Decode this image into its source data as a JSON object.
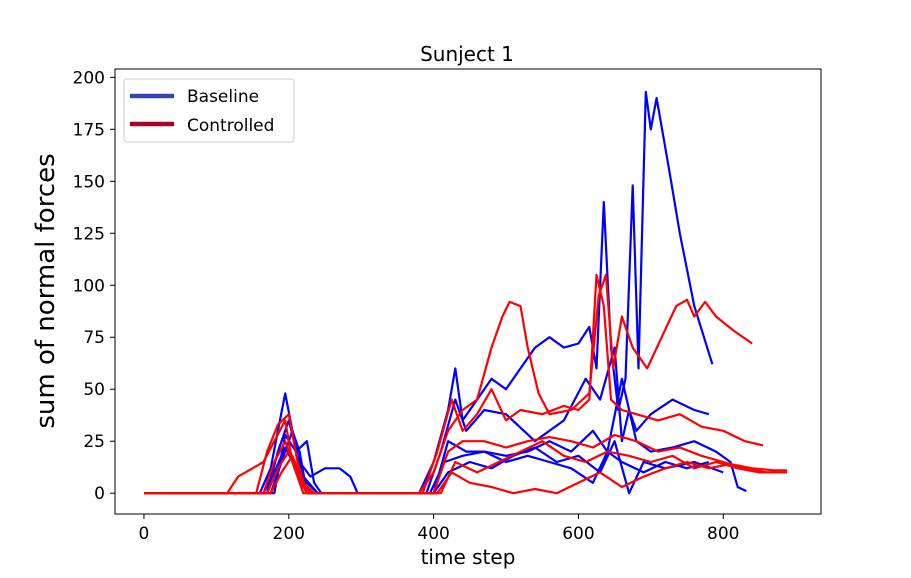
{
  "chart_data": {
    "type": "line",
    "title": "Sunject 1",
    "xlabel": "time step",
    "ylabel": "sum of normal forces",
    "xlim": [
      -40,
      935
    ],
    "ylim": [
      -10,
      204
    ],
    "xticks": [
      0,
      200,
      400,
      600,
      800
    ],
    "yticks": [
      0,
      25,
      50,
      75,
      100,
      125,
      150,
      175,
      200
    ],
    "grid": false,
    "legend": {
      "position": "top-left",
      "entries": [
        {
          "label": "Baseline",
          "color": "#3344bb"
        },
        {
          "label": "Controlled",
          "color": "#aa0022"
        }
      ]
    },
    "series_colors": {
      "Baseline": "#0000ff",
      "Controlled": "#ff0000"
    },
    "series": [
      {
        "group": "Baseline",
        "points": [
          [
            0,
            0
          ],
          [
            160,
            0
          ],
          [
            175,
            12
          ],
          [
            185,
            30
          ],
          [
            195,
            48
          ],
          [
            205,
            30
          ],
          [
            215,
            20
          ],
          [
            225,
            0
          ],
          [
            380,
            0
          ],
          [
            400,
            15
          ],
          [
            420,
            40
          ],
          [
            430,
            60
          ],
          [
            440,
            35
          ],
          [
            460,
            45
          ],
          [
            480,
            55
          ],
          [
            500,
            50
          ],
          [
            520,
            60
          ],
          [
            540,
            70
          ],
          [
            560,
            75
          ],
          [
            580,
            70
          ],
          [
            600,
            72
          ],
          [
            615,
            80
          ],
          [
            625,
            60
          ],
          [
            635,
            140
          ],
          [
            645,
            70
          ],
          [
            655,
            40
          ],
          [
            665,
            55
          ],
          [
            675,
            148
          ],
          [
            683,
            60
          ],
          [
            693,
            193
          ],
          [
            700,
            175
          ],
          [
            708,
            190
          ],
          [
            718,
            170
          ],
          [
            728,
            150
          ],
          [
            740,
            125
          ],
          [
            760,
            90
          ],
          [
            785,
            62
          ]
        ]
      },
      {
        "group": "Baseline",
        "points": [
          [
            0,
            0
          ],
          [
            180,
            0
          ],
          [
            195,
            28
          ],
          [
            210,
            20
          ],
          [
            225,
            25
          ],
          [
            235,
            5
          ],
          [
            245,
            0
          ],
          [
            390,
            0
          ],
          [
            410,
            20
          ],
          [
            430,
            45
          ],
          [
            445,
            30
          ],
          [
            470,
            40
          ],
          [
            500,
            38
          ],
          [
            540,
            25
          ],
          [
            580,
            35
          ],
          [
            610,
            55
          ],
          [
            630,
            45
          ],
          [
            650,
            70
          ],
          [
            660,
            25
          ],
          [
            670,
            40
          ],
          [
            680,
            30
          ],
          [
            700,
            38
          ],
          [
            730,
            45
          ],
          [
            760,
            40
          ],
          [
            780,
            38
          ]
        ]
      },
      {
        "group": "Baseline",
        "points": [
          [
            0,
            0
          ],
          [
            170,
            0
          ],
          [
            185,
            20
          ],
          [
            200,
            35
          ],
          [
            215,
            15
          ],
          [
            230,
            8
          ],
          [
            250,
            12
          ],
          [
            270,
            12
          ],
          [
            285,
            8
          ],
          [
            295,
            0
          ],
          [
            400,
            0
          ],
          [
            420,
            25
          ],
          [
            445,
            20
          ],
          [
            470,
            20
          ],
          [
            500,
            18
          ],
          [
            530,
            20
          ],
          [
            560,
            25
          ],
          [
            590,
            20
          ],
          [
            620,
            30
          ],
          [
            640,
            20
          ],
          [
            660,
            55
          ],
          [
            680,
            25
          ],
          [
            700,
            20
          ],
          [
            730,
            22
          ],
          [
            760,
            25
          ],
          [
            790,
            20
          ],
          [
            810,
            15
          ],
          [
            820,
            3
          ],
          [
            832,
            1
          ]
        ]
      },
      {
        "group": "Baseline",
        "points": [
          [
            0,
            0
          ],
          [
            175,
            0
          ],
          [
            190,
            15
          ],
          [
            205,
            30
          ],
          [
            220,
            8
          ],
          [
            240,
            0
          ],
          [
            395,
            0
          ],
          [
            415,
            15
          ],
          [
            440,
            18
          ],
          [
            470,
            20
          ],
          [
            500,
            15
          ],
          [
            530,
            18
          ],
          [
            560,
            15
          ],
          [
            590,
            12
          ],
          [
            620,
            5
          ],
          [
            640,
            20
          ],
          [
            660,
            15
          ],
          [
            690,
            10
          ],
          [
            720,
            15
          ],
          [
            750,
            12
          ],
          [
            780,
            15
          ]
        ]
      },
      {
        "group": "Baseline",
        "points": [
          [
            0,
            0
          ],
          [
            165,
            0
          ],
          [
            180,
            10
          ],
          [
            195,
            22
          ],
          [
            210,
            12
          ],
          [
            225,
            5
          ],
          [
            240,
            0
          ],
          [
            400,
            0
          ],
          [
            420,
            10
          ],
          [
            450,
            15
          ],
          [
            480,
            12
          ],
          [
            510,
            18
          ],
          [
            540,
            22
          ],
          [
            570,
            15
          ],
          [
            600,
            18
          ],
          [
            630,
            10
          ],
          [
            650,
            25
          ],
          [
            670,
            0
          ],
          [
            690,
            15
          ],
          [
            720,
            12
          ],
          [
            760,
            15
          ],
          [
            800,
            10
          ]
        ]
      },
      {
        "group": "Controlled",
        "points": [
          [
            0,
            0
          ],
          [
            115,
            0
          ],
          [
            130,
            8
          ],
          [
            150,
            12
          ],
          [
            165,
            15
          ],
          [
            180,
            25
          ],
          [
            195,
            35
          ],
          [
            205,
            15
          ],
          [
            220,
            0
          ],
          [
            380,
            0
          ],
          [
            400,
            10
          ],
          [
            420,
            30
          ],
          [
            440,
            40
          ],
          [
            460,
            45
          ],
          [
            480,
            70
          ],
          [
            495,
            85
          ],
          [
            505,
            92
          ],
          [
            520,
            90
          ],
          [
            530,
            70
          ],
          [
            545,
            48
          ],
          [
            560,
            38
          ],
          [
            590,
            40
          ],
          [
            615,
            48
          ],
          [
            628,
            95
          ],
          [
            638,
            105
          ],
          [
            648,
            60
          ],
          [
            660,
            85
          ],
          [
            675,
            70
          ],
          [
            695,
            60
          ],
          [
            715,
            75
          ],
          [
            735,
            90
          ],
          [
            750,
            93
          ],
          [
            760,
            85
          ],
          [
            775,
            92
          ],
          [
            790,
            85
          ],
          [
            815,
            78
          ],
          [
            840,
            72
          ]
        ]
      },
      {
        "group": "Controlled",
        "points": [
          [
            0,
            0
          ],
          [
            155,
            0
          ],
          [
            170,
            20
          ],
          [
            185,
            33
          ],
          [
            200,
            38
          ],
          [
            212,
            15
          ],
          [
            225,
            0
          ],
          [
            385,
            0
          ],
          [
            405,
            20
          ],
          [
            425,
            45
          ],
          [
            440,
            30
          ],
          [
            460,
            38
          ],
          [
            480,
            50
          ],
          [
            500,
            35
          ],
          [
            520,
            40
          ],
          [
            550,
            38
          ],
          [
            580,
            42
          ],
          [
            600,
            40
          ],
          [
            615,
            45
          ],
          [
            625,
            105
          ],
          [
            635,
            90
          ],
          [
            645,
            45
          ],
          [
            660,
            40
          ],
          [
            680,
            38
          ],
          [
            710,
            35
          ],
          [
            740,
            38
          ],
          [
            770,
            32
          ],
          [
            800,
            30
          ],
          [
            830,
            25
          ],
          [
            855,
            23
          ]
        ]
      },
      {
        "group": "Controlled",
        "points": [
          [
            0,
            0
          ],
          [
            165,
            0
          ],
          [
            180,
            15
          ],
          [
            195,
            25
          ],
          [
            210,
            10
          ],
          [
            225,
            0
          ],
          [
            400,
            0
          ],
          [
            420,
            20
          ],
          [
            440,
            25
          ],
          [
            470,
            25
          ],
          [
            500,
            22
          ],
          [
            530,
            25
          ],
          [
            560,
            27
          ],
          [
            590,
            25
          ],
          [
            620,
            22
          ],
          [
            650,
            28
          ],
          [
            680,
            25
          ],
          [
            710,
            20
          ],
          [
            740,
            22
          ],
          [
            770,
            18
          ],
          [
            800,
            15
          ],
          [
            830,
            12
          ],
          [
            860,
            10
          ],
          [
            888,
            10
          ]
        ]
      },
      {
        "group": "Controlled",
        "points": [
          [
            0,
            0
          ],
          [
            170,
            0
          ],
          [
            185,
            12
          ],
          [
            200,
            20
          ],
          [
            215,
            8
          ],
          [
            230,
            0
          ],
          [
            410,
            0
          ],
          [
            430,
            15
          ],
          [
            460,
            10
          ],
          [
            490,
            15
          ],
          [
            520,
            20
          ],
          [
            550,
            25
          ],
          [
            580,
            18
          ],
          [
            610,
            15
          ],
          [
            640,
            20
          ],
          [
            670,
            18
          ],
          [
            700,
            15
          ],
          [
            730,
            18
          ],
          [
            760,
            12
          ],
          [
            790,
            15
          ],
          [
            820,
            12
          ],
          [
            850,
            10
          ],
          [
            885,
            10
          ]
        ]
      },
      {
        "group": "Controlled",
        "points": [
          [
            0,
            0
          ],
          [
            175,
            0
          ],
          [
            190,
            10
          ],
          [
            205,
            18
          ],
          [
            220,
            5
          ],
          [
            235,
            0
          ],
          [
            405,
            0
          ],
          [
            425,
            10
          ],
          [
            450,
            5
          ],
          [
            480,
            3
          ],
          [
            510,
            0
          ],
          [
            540,
            2
          ],
          [
            570,
            0
          ],
          [
            600,
            5
          ],
          [
            630,
            10
          ],
          [
            660,
            3
          ],
          [
            690,
            8
          ],
          [
            720,
            12
          ],
          [
            750,
            15
          ],
          [
            780,
            12
          ],
          [
            810,
            14
          ],
          [
            840,
            12
          ],
          [
            870,
            11
          ],
          [
            888,
            11
          ]
        ]
      }
    ]
  }
}
